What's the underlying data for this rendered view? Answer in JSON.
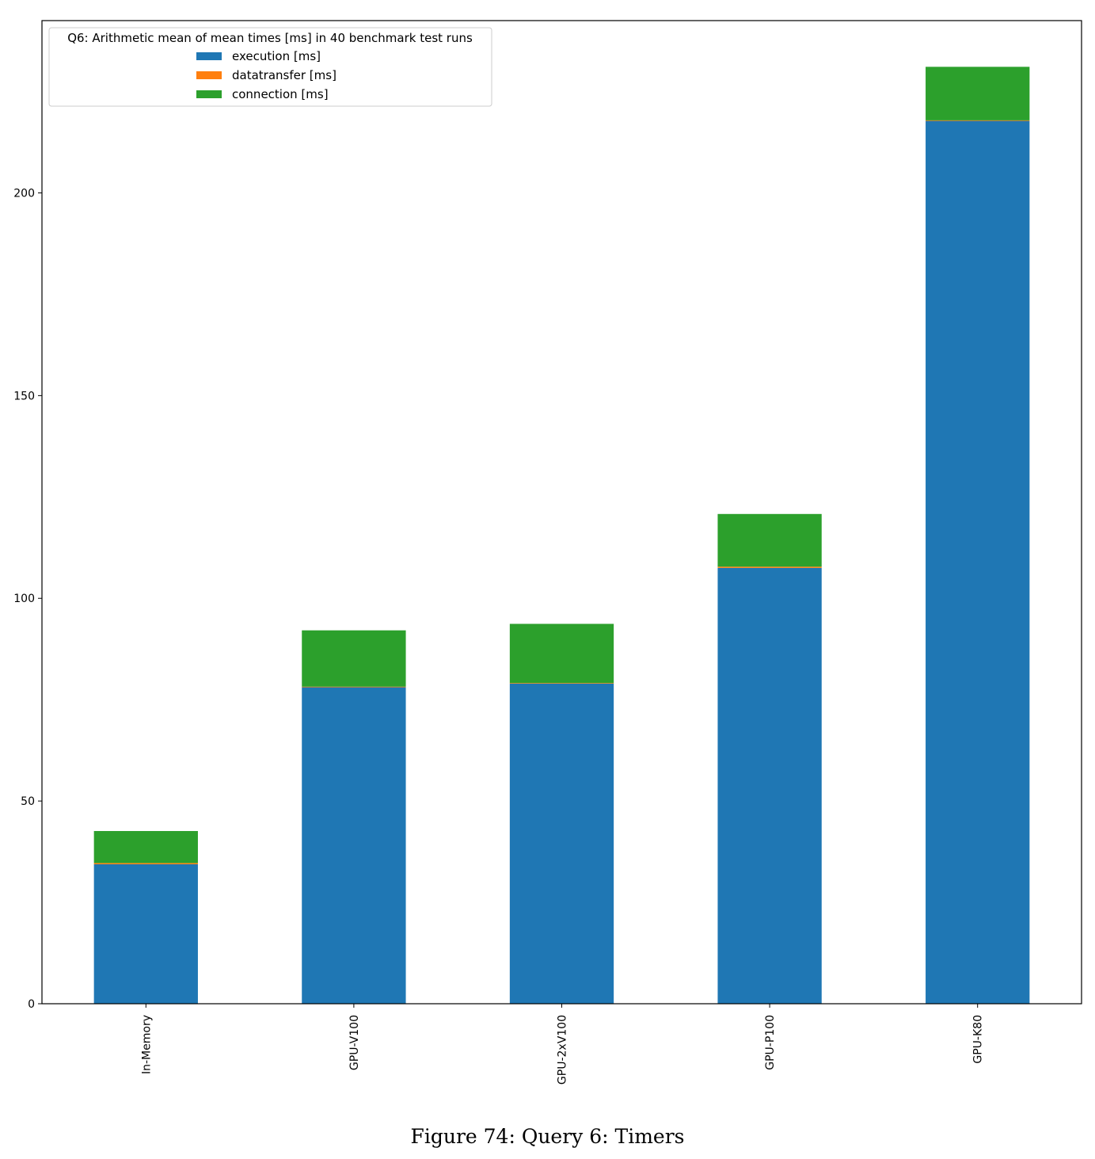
{
  "chart_data": {
    "type": "bar",
    "stacked": true,
    "categories": [
      "In-Memory",
      "GPU-V100",
      "GPU-2xV100",
      "GPU-P100",
      "GPU-K80"
    ],
    "series": [
      {
        "name": "execution [ms]",
        "color": "#1f77b4",
        "values": [
          34.4,
          78.1,
          79.0,
          107.5,
          217.8
        ]
      },
      {
        "name": "datatransfer [ms]",
        "color": "#ff7f0e",
        "values": [
          0.3,
          0.1,
          0.1,
          0.3,
          0.1
        ]
      },
      {
        "name": "connection [ms]",
        "color": "#2ca02c",
        "values": [
          7.9,
          13.9,
          14.6,
          13.0,
          13.2
        ]
      }
    ],
    "yticks": [
      0,
      50,
      100,
      150,
      200
    ],
    "ylim": [
      0,
      242.5
    ],
    "xlabel": "",
    "ylabel": "",
    "legend": {
      "title": "Q6: Arithmetic mean of mean times [ms] in 40 benchmark test runs",
      "placement": "top-left"
    },
    "grid": false
  },
  "caption": "Figure 74: Query 6: Timers"
}
